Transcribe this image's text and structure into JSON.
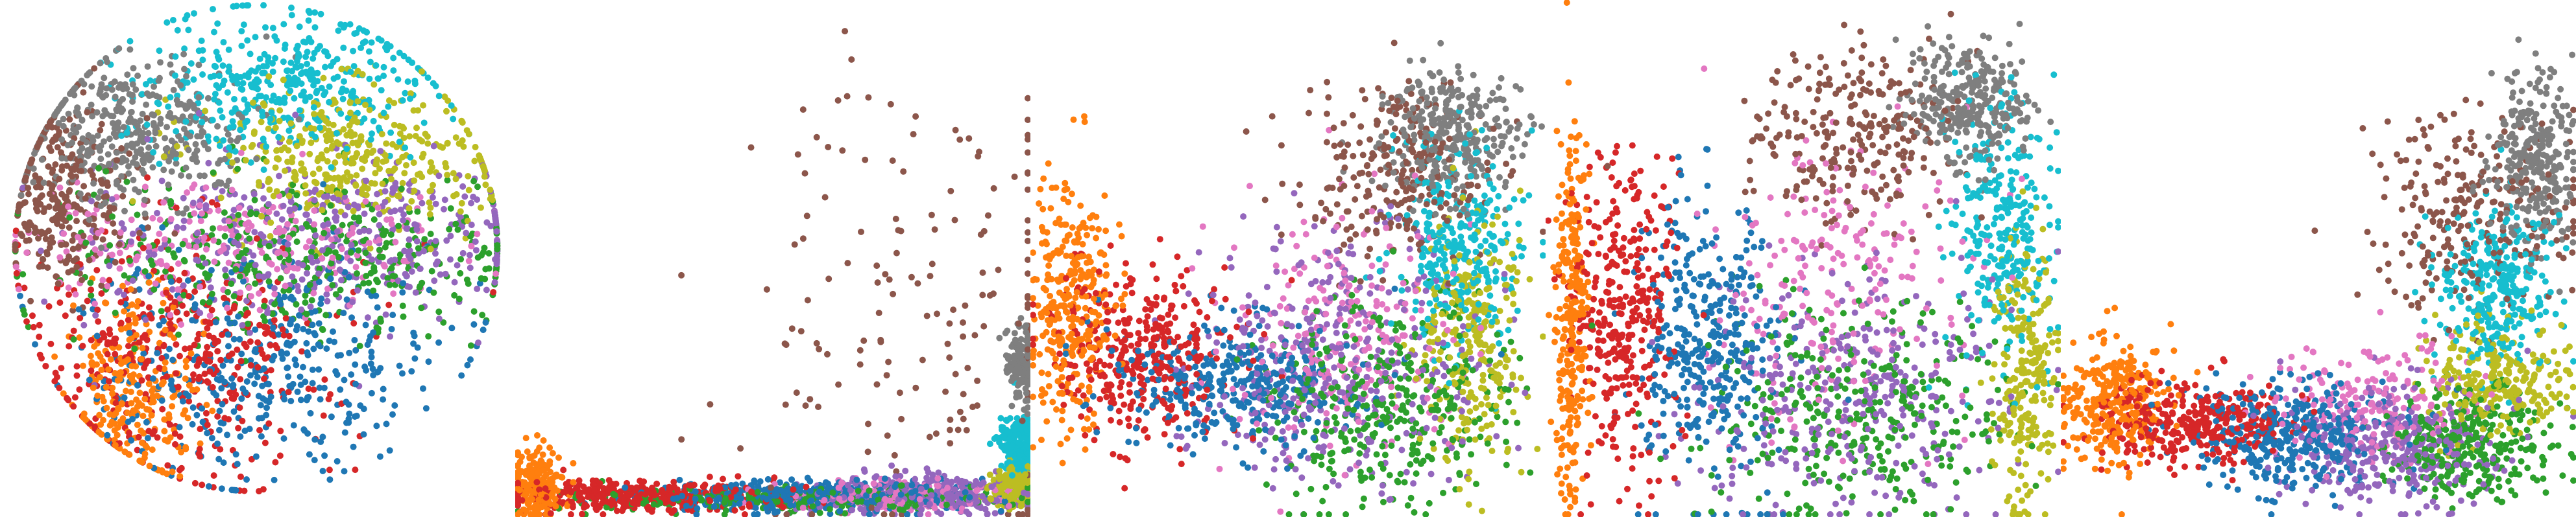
{
  "palette": {
    "blue": "#1f77b4",
    "orange": "#ff7f0e",
    "green": "#2ca02c",
    "red": "#d62728",
    "purple": "#9467bd",
    "brown": "#8c564b",
    "pink": "#e377c2",
    "gray": "#7f7f7f",
    "olive": "#bcbd22",
    "cyan": "#17becf"
  },
  "chart_data": [
    {
      "type": "scatter",
      "panel": 1,
      "grid": false,
      "axes_visible": false,
      "layout_shape": "disk",
      "clusters": [
        {
          "color": "gray",
          "center": [
            0.25,
            0.25
          ],
          "spread": [
            0.12,
            0.07
          ],
          "count": 420
        },
        {
          "color": "brown",
          "center": [
            0.12,
            0.38
          ],
          "spread": [
            0.07,
            0.09
          ],
          "count": 300
        },
        {
          "color": "cyan",
          "center": [
            0.55,
            0.16
          ],
          "spread": [
            0.15,
            0.07
          ],
          "count": 420
        },
        {
          "color": "olive",
          "center": [
            0.68,
            0.3
          ],
          "spread": [
            0.14,
            0.07
          ],
          "count": 380
        },
        {
          "color": "green",
          "center": [
            0.6,
            0.5
          ],
          "spread": [
            0.24,
            0.08
          ],
          "count": 420
        },
        {
          "color": "purple",
          "center": [
            0.62,
            0.46
          ],
          "spread": [
            0.22,
            0.08
          ],
          "count": 420
        },
        {
          "color": "pink",
          "center": [
            0.45,
            0.48
          ],
          "spread": [
            0.22,
            0.06
          ],
          "count": 260
        },
        {
          "color": "blue",
          "center": [
            0.52,
            0.7
          ],
          "spread": [
            0.18,
            0.11
          ],
          "count": 420
        },
        {
          "color": "red",
          "center": [
            0.35,
            0.68
          ],
          "spread": [
            0.15,
            0.12
          ],
          "count": 420
        },
        {
          "color": "orange",
          "center": [
            0.26,
            0.75
          ],
          "spread": [
            0.06,
            0.09
          ],
          "count": 260
        }
      ]
    },
    {
      "type": "scatter",
      "panel": 2,
      "grid": false,
      "axes_visible": false,
      "layout_shape": "flat-band",
      "clusters": [
        {
          "color": "orange",
          "center": [
            0.04,
            0.94
          ],
          "spread": [
            0.025,
            0.035
          ],
          "count": 220
        },
        {
          "color": "red",
          "center": [
            0.25,
            0.96
          ],
          "spread": [
            0.14,
            0.015
          ],
          "count": 380
        },
        {
          "color": "blue",
          "center": [
            0.58,
            0.96
          ],
          "spread": [
            0.16,
            0.015
          ],
          "count": 380
        },
        {
          "color": "green",
          "center": [
            0.55,
            0.965
          ],
          "spread": [
            0.2,
            0.012
          ],
          "count": 240
        },
        {
          "color": "purple",
          "center": [
            0.8,
            0.955
          ],
          "spread": [
            0.1,
            0.02
          ],
          "count": 300
        },
        {
          "color": "pink",
          "center": [
            0.75,
            0.96
          ],
          "spread": [
            0.12,
            0.015
          ],
          "count": 160
        },
        {
          "color": "olive",
          "center": [
            0.97,
            0.94
          ],
          "spread": [
            0.025,
            0.02
          ],
          "count": 200
        },
        {
          "color": "cyan",
          "center": [
            0.98,
            0.86
          ],
          "spread": [
            0.02,
            0.025
          ],
          "count": 200
        },
        {
          "color": "gray",
          "center": [
            0.985,
            0.7
          ],
          "spread": [
            0.015,
            0.04
          ],
          "count": 140
        },
        {
          "color": "brown",
          "center": [
            0.8,
            0.62
          ],
          "spread": [
            0.18,
            0.22
          ],
          "count": 170
        }
      ]
    },
    {
      "type": "scatter",
      "panel": 3,
      "grid": false,
      "axes_visible": false,
      "layout_shape": "rising-ridge",
      "clusters": [
        {
          "color": "orange",
          "center": [
            0.08,
            0.6
          ],
          "spread": [
            0.04,
            0.12
          ],
          "count": 320
        },
        {
          "color": "red",
          "center": [
            0.22,
            0.68
          ],
          "spread": [
            0.09,
            0.08
          ],
          "count": 360
        },
        {
          "color": "blue",
          "center": [
            0.4,
            0.74
          ],
          "spread": [
            0.12,
            0.06
          ],
          "count": 360
        },
        {
          "color": "purple",
          "center": [
            0.6,
            0.7
          ],
          "spread": [
            0.14,
            0.12
          ],
          "count": 380
        },
        {
          "color": "green",
          "center": [
            0.68,
            0.78
          ],
          "spread": [
            0.12,
            0.1
          ],
          "count": 360
        },
        {
          "color": "pink",
          "center": [
            0.62,
            0.65
          ],
          "spread": [
            0.12,
            0.12
          ],
          "count": 220
        },
        {
          "color": "olive",
          "center": [
            0.86,
            0.66
          ],
          "spread": [
            0.05,
            0.12
          ],
          "count": 260
        },
        {
          "color": "cyan",
          "center": [
            0.83,
            0.46
          ],
          "spread": [
            0.06,
            0.1
          ],
          "count": 300
        },
        {
          "color": "gray",
          "center": [
            0.82,
            0.26
          ],
          "spread": [
            0.07,
            0.06
          ],
          "count": 320
        },
        {
          "color": "brown",
          "center": [
            0.7,
            0.34
          ],
          "spread": [
            0.09,
            0.09
          ],
          "count": 260
        }
      ]
    },
    {
      "type": "scatter",
      "panel": 4,
      "grid": false,
      "axes_visible": false,
      "layout_shape": "loop",
      "clusters": [
        {
          "color": "orange",
          "center": [
            0.05,
            0.62
          ],
          "spread": [
            0.015,
            0.18
          ],
          "count": 280
        },
        {
          "color": "red",
          "center": [
            0.15,
            0.6
          ],
          "spread": [
            0.05,
            0.15
          ],
          "count": 340
        },
        {
          "color": "blue",
          "center": [
            0.32,
            0.66
          ],
          "spread": [
            0.07,
            0.14
          ],
          "count": 360
        },
        {
          "color": "green",
          "center": [
            0.6,
            0.8
          ],
          "spread": [
            0.15,
            0.1
          ],
          "count": 340
        },
        {
          "color": "purple",
          "center": [
            0.62,
            0.76
          ],
          "spread": [
            0.16,
            0.12
          ],
          "count": 340
        },
        {
          "color": "pink",
          "center": [
            0.58,
            0.55
          ],
          "spread": [
            0.12,
            0.15
          ],
          "count": 220
        },
        {
          "color": "olive",
          "center": [
            0.93,
            0.72
          ],
          "spread": [
            0.03,
            0.12
          ],
          "count": 240
        },
        {
          "color": "cyan",
          "center": [
            0.88,
            0.45
          ],
          "spread": [
            0.05,
            0.12
          ],
          "count": 280
        },
        {
          "color": "gray",
          "center": [
            0.82,
            0.2
          ],
          "spread": [
            0.06,
            0.06
          ],
          "count": 300
        },
        {
          "color": "brown",
          "center": [
            0.6,
            0.26
          ],
          "spread": [
            0.1,
            0.08
          ],
          "count": 260
        }
      ]
    },
    {
      "type": "scatter",
      "panel": 5,
      "grid": false,
      "axes_visible": false,
      "layout_shape": "ramp",
      "clusters": [
        {
          "color": "orange",
          "center": [
            0.1,
            0.78
          ],
          "spread": [
            0.05,
            0.06
          ],
          "count": 300
        },
        {
          "color": "red",
          "center": [
            0.26,
            0.82
          ],
          "spread": [
            0.09,
            0.04
          ],
          "count": 340
        },
        {
          "color": "blue",
          "center": [
            0.45,
            0.84
          ],
          "spread": [
            0.1,
            0.05
          ],
          "count": 360
        },
        {
          "color": "purple",
          "center": [
            0.65,
            0.86
          ],
          "spread": [
            0.1,
            0.06
          ],
          "count": 340
        },
        {
          "color": "green",
          "center": [
            0.8,
            0.86
          ],
          "spread": [
            0.08,
            0.05
          ],
          "count": 300
        },
        {
          "color": "pink",
          "center": [
            0.6,
            0.78
          ],
          "spread": [
            0.1,
            0.06
          ],
          "count": 180
        },
        {
          "color": "olive",
          "center": [
            0.84,
            0.73
          ],
          "spread": [
            0.07,
            0.05
          ],
          "count": 260
        },
        {
          "color": "cyan",
          "center": [
            0.85,
            0.56
          ],
          "spread": [
            0.06,
            0.08
          ],
          "count": 300
        },
        {
          "color": "gray",
          "center": [
            0.92,
            0.3
          ],
          "spread": [
            0.04,
            0.08
          ],
          "count": 300
        },
        {
          "color": "brown",
          "center": [
            0.8,
            0.42
          ],
          "spread": [
            0.1,
            0.1
          ],
          "count": 260
        }
      ]
    }
  ]
}
